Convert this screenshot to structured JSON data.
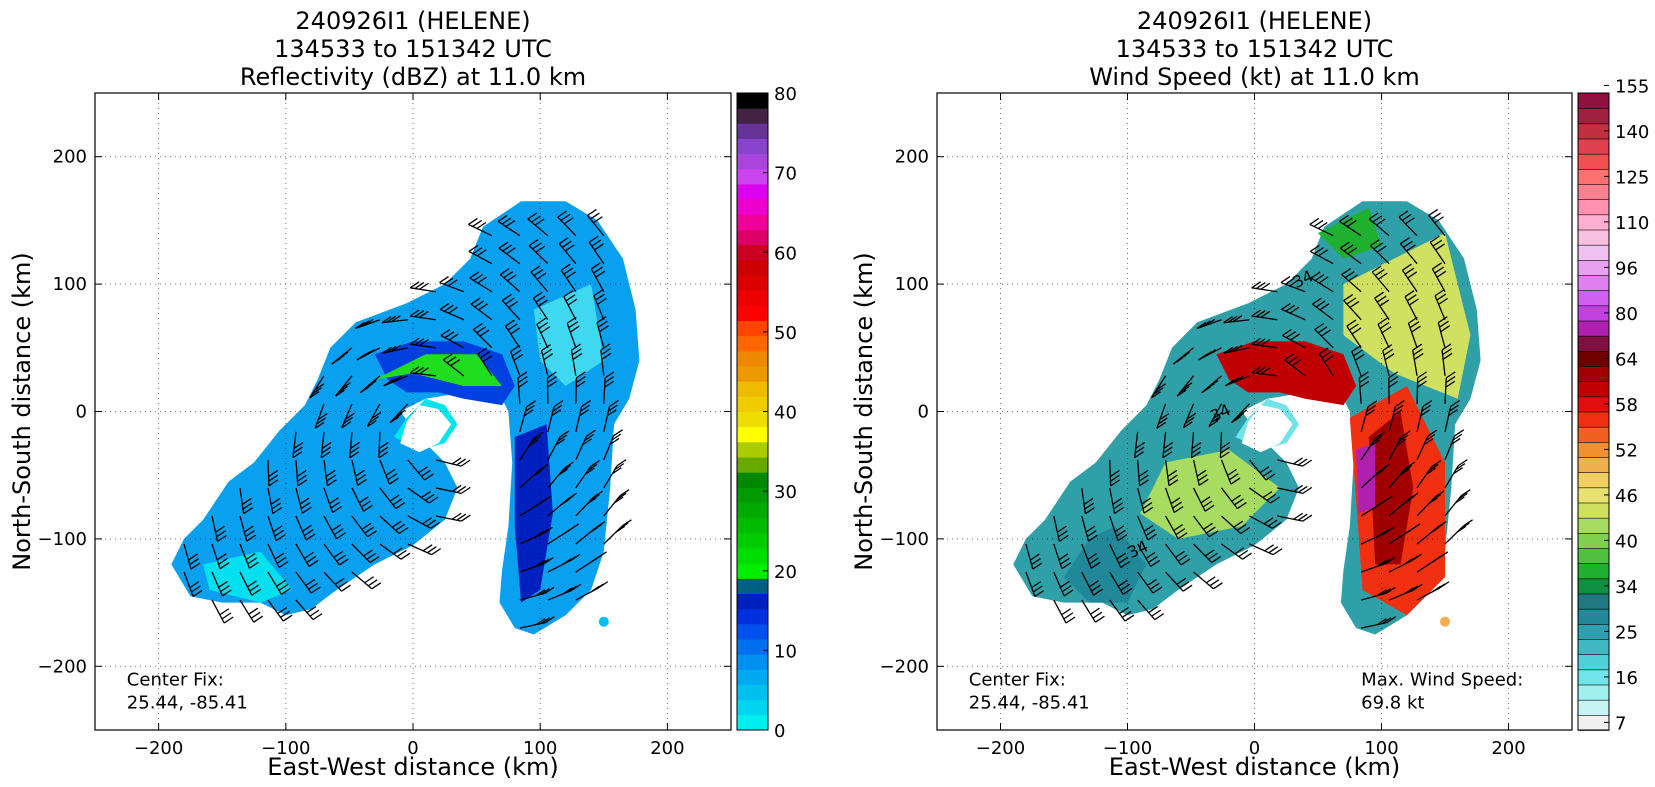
{
  "chart_data": [
    {
      "type": "heatmap",
      "title": [
        "240926I1 (HELENE)",
        "134533 to 151342 UTC",
        "Reflectivity (dBZ) at 11.0 km"
      ],
      "xlabel": "East-West distance (km)",
      "ylabel": "North-South distance (km)",
      "xlim": [
        -250,
        250
      ],
      "ylim": [
        -250,
        250
      ],
      "xticks": [
        -200,
        -100,
        0,
        100,
        200
      ],
      "yticks": [
        -200,
        -100,
        0,
        100,
        200
      ],
      "grid": true,
      "annotations": [
        {
          "text": "Center Fix:",
          "x": -225,
          "y": -215
        },
        {
          "text": "25.44, -85.41",
          "x": -225,
          "y": -233
        }
      ],
      "colorbar": {
        "ticks": [
          0,
          10,
          20,
          30,
          40,
          50,
          60,
          70,
          80
        ],
        "range": [
          0,
          80
        ],
        "colors": [
          "#00eeee",
          "#00d4ee",
          "#00c0f0",
          "#00aaf0",
          "#0090f0",
          "#0070f0",
          "#0050ee",
          "#0030e0",
          "#0020c0",
          "#006080",
          "#00ee00",
          "#00dd00",
          "#00cc00",
          "#00bb00",
          "#00aa00",
          "#009900",
          "#008800",
          "#66aa00",
          "#aacc00",
          "#ffff00",
          "#eedd00",
          "#eecc00",
          "#eebb00",
          "#ee9900",
          "#ee8800",
          "#ff6600",
          "#ff4400",
          "#ff0000",
          "#ee0000",
          "#dd0000",
          "#cc0000",
          "#cc0022",
          "#dd0066",
          "#ee0099",
          "#ee00cc",
          "#dd00ee",
          "#cc44ee",
          "#aa44dd",
          "#8844cc",
          "#663399",
          "#442244",
          "#000000"
        ]
      }
    },
    {
      "type": "heatmap",
      "title": [
        "240926I1 (HELENE)",
        "134533 to 151342 UTC",
        "Wind Speed (kt) at 11.0 km"
      ],
      "xlabel": "East-West distance (km)",
      "ylabel": "North-South distance (km)",
      "xlim": [
        -250,
        250
      ],
      "ylim": [
        -250,
        250
      ],
      "xticks": [
        -200,
        -100,
        0,
        100,
        200
      ],
      "yticks": [
        -200,
        -100,
        0,
        100,
        200
      ],
      "grid": true,
      "contour_labels": [
        "34",
        "34",
        "34"
      ],
      "annotations": [
        {
          "text": "Center Fix:",
          "x": -225,
          "y": -215
        },
        {
          "text": "25.44, -85.41",
          "x": -225,
          "y": -233
        },
        {
          "text": "Max. Wind Speed:",
          "x": 84,
          "y": -215
        },
        {
          "text": "69.8 kt",
          "x": 84,
          "y": -233
        }
      ],
      "colorbar": {
        "ticks": [
          7,
          16,
          25,
          34,
          40,
          46,
          52,
          58,
          64,
          80,
          96,
          110,
          125,
          140,
          155
        ],
        "colors": [
          "#f0f0f0",
          "#c8f4f4",
          "#a0f0f0",
          "#70e4e8",
          "#50d0d8",
          "#40b8c4",
          "#30a0b0",
          "#208898",
          "#207880",
          "#109040",
          "#20b030",
          "#50c040",
          "#80d050",
          "#a8dc60",
          "#d0e060",
          "#e8e070",
          "#f0d060",
          "#f0b050",
          "#f09030",
          "#f06020",
          "#f03010",
          "#e01010",
          "#c00000",
          "#a00000",
          "#700000",
          "#801040",
          "#b020b0",
          "#c040e0",
          "#d060f0",
          "#e080f0",
          "#e8a0f0",
          "#f0c0f0",
          "#f8c0e0",
          "#ffb0d0",
          "#ff90b0",
          "#ff8090",
          "#ff7070",
          "#f05050",
          "#e04050",
          "#c03040",
          "#a02040",
          "#901040"
        ]
      }
    }
  ]
}
